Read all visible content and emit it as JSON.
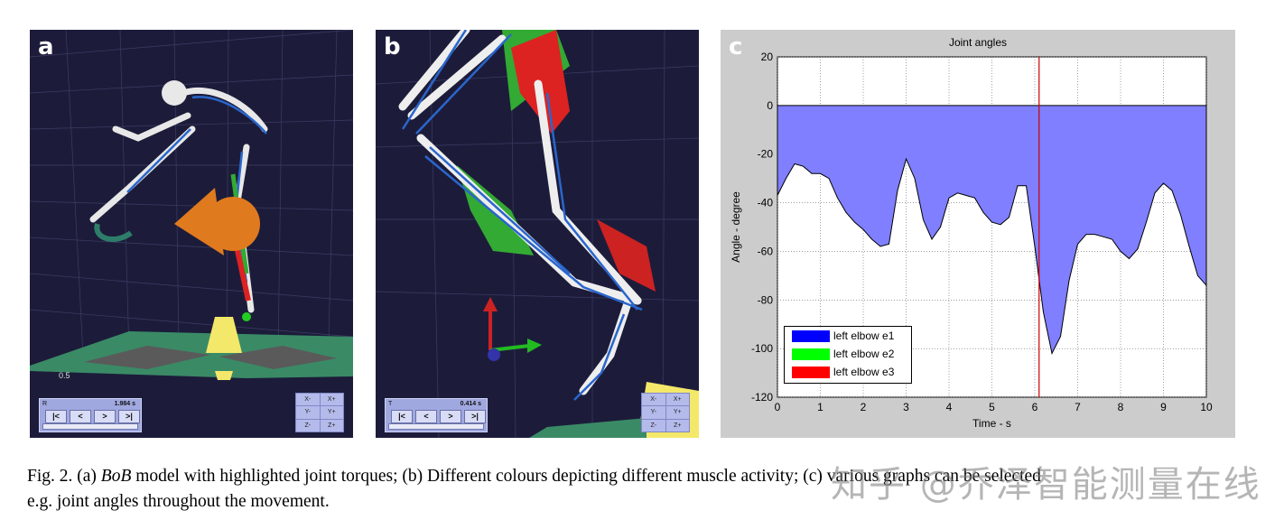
{
  "panels": {
    "a": {
      "letter": "a",
      "scale_label": "0.5",
      "control": {
        "label": "R",
        "time": "1.984 s",
        "buttons": [
          "|<",
          "<",
          ">",
          ">|"
        ]
      },
      "axes_buttons": [
        "X-",
        "X+",
        "Y-",
        "Y+",
        "Z-",
        "Z+"
      ]
    },
    "b": {
      "letter": "b",
      "control": {
        "label": "T",
        "time": "0.414 s",
        "buttons": [
          "|<",
          "<",
          ">",
          ">|"
        ]
      },
      "axes_buttons": [
        "X-",
        "X+",
        "Y-",
        "Y+",
        "Z-",
        "Z+"
      ]
    },
    "c": {
      "letter": "c"
    }
  },
  "chart_data": {
    "type": "area",
    "title": "Joint angles",
    "xlabel": "Time - s",
    "ylabel": "Angle - degree",
    "xlim": [
      0,
      10
    ],
    "ylim": [
      -120,
      20
    ],
    "xticks": [
      "0",
      "1",
      "2",
      "3",
      "4",
      "5",
      "6",
      "7",
      "8",
      "9",
      "10"
    ],
    "yticks": [
      "20",
      "0",
      "-20",
      "-40",
      "-60",
      "-80",
      "-100",
      "-120"
    ],
    "grid": true,
    "fill_color": "#7f7fff",
    "cursor_x": 6.1,
    "cursor_color": "#cc0000",
    "legend": [
      {
        "name": "left elbow e1",
        "color": "#0000ff"
      },
      {
        "name": "left elbow e2",
        "color": "#00ff00"
      },
      {
        "name": "left elbow e3",
        "color": "#ff0000"
      }
    ],
    "legend_position": "bottom-left",
    "series": [
      {
        "name": "left elbow e1",
        "x": [
          0,
          0.2,
          0.4,
          0.6,
          0.8,
          1.0,
          1.2,
          1.4,
          1.6,
          1.8,
          2.0,
          2.2,
          2.4,
          2.6,
          2.8,
          3.0,
          3.2,
          3.4,
          3.6,
          3.8,
          4.0,
          4.2,
          4.4,
          4.6,
          4.8,
          5.0,
          5.2,
          5.4,
          5.6,
          5.8,
          6.0,
          6.2,
          6.4,
          6.6,
          6.8,
          7.0,
          7.2,
          7.4,
          7.6,
          7.8,
          8.0,
          8.2,
          8.4,
          8.6,
          8.8,
          9.0,
          9.2,
          9.4,
          9.6,
          9.8,
          10.0
        ],
        "values": [
          -37,
          -30,
          -24,
          -25,
          -28,
          -28,
          -30,
          -38,
          -44,
          -48,
          -51,
          -55,
          -58,
          -57,
          -35,
          -22,
          -30,
          -47,
          -55,
          -50,
          -38,
          -36,
          -37,
          -38,
          -44,
          -48,
          -49,
          -46,
          -33,
          -33,
          -58,
          -85,
          -102,
          -95,
          -72,
          -57,
          -53,
          -53,
          -54,
          -55,
          -60,
          -63,
          -59,
          -48,
          -36,
          -32,
          -35,
          -45,
          -58,
          -70,
          -74
        ]
      }
    ]
  },
  "caption": {
    "prefix": "Fig. 2. (a) ",
    "italic": "BoB",
    "line1_rest": " model with highlighted joint torques; (b) Different colours depicting different muscle activity; (c) various graphs can be selected",
    "line2": "e.g. joint angles throughout the movement."
  },
  "watermark": "知乎 @乔泽智能测量在线"
}
